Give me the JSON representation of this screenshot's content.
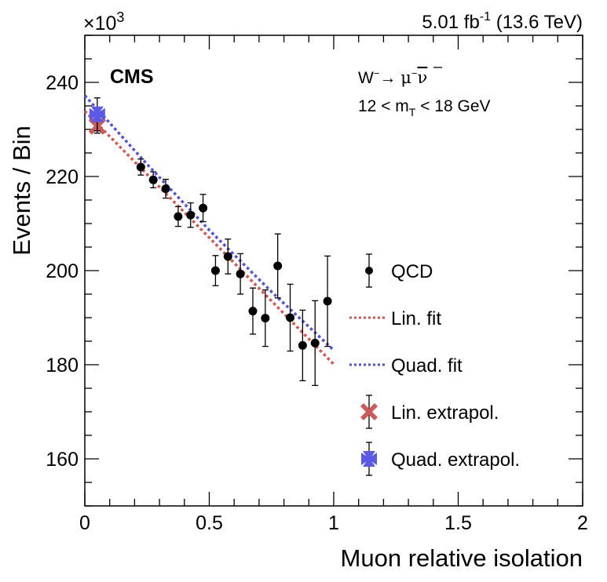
{
  "chart_data": {
    "type": "scatter",
    "title": "",
    "xlabel": "Muon relative isolation",
    "ylabel": "Events / Bin",
    "y_multiplier": "×10",
    "y_multiplier_exp": "3",
    "xlim": [
      0,
      2
    ],
    "ylim": [
      150,
      250
    ],
    "x_ticks": [
      0,
      0.5,
      1,
      1.5,
      2
    ],
    "x_tick_labels": [
      "0",
      "0.5",
      "1",
      "1.5",
      "2"
    ],
    "x_minor_step": 0.1,
    "y_ticks": [
      160,
      180,
      200,
      220,
      240
    ],
    "y_tick_labels": [
      "160",
      "180",
      "200",
      "220",
      "240"
    ],
    "y_minor_step": 5,
    "grid": false,
    "experiment_label": "CMS",
    "lumi_label": {
      "value": "5.01 fb",
      "exp": "-1",
      "energy": " (13.6 TeV)"
    },
    "annotations": {
      "process": {
        "w": "W",
        "w_charge": "−",
        "arrow": "→ ",
        "mu": "μ",
        "mu_charge": "−",
        "nu": "ν"
      },
      "mt_range": {
        "pre": "12 < m",
        "sub": "T",
        "post": " < 18 GeV"
      }
    },
    "legend_position": "right",
    "series": [
      {
        "name": "QCD",
        "kind": "points-with-errors",
        "color": "#000000",
        "x": [
          0.225,
          0.275,
          0.325,
          0.375,
          0.425,
          0.475,
          0.525,
          0.575,
          0.625,
          0.675,
          0.725,
          0.775,
          0.825,
          0.875,
          0.925,
          0.975
        ],
        "y": [
          222.0,
          219.3,
          217.4,
          211.5,
          211.8,
          213.3,
          200.0,
          203.0,
          199.3,
          191.4,
          189.9,
          201.0,
          190.0,
          184.1,
          184.6,
          193.5
        ],
        "yerr": [
          1.7,
          1.7,
          2.0,
          2.1,
          2.6,
          2.9,
          3.2,
          3.7,
          4.3,
          4.9,
          6.0,
          6.8,
          7.1,
          7.5,
          9.0,
          9.6
        ]
      },
      {
        "name": "Lin. fit",
        "kind": "dotted-line",
        "color": "#d9534f",
        "x": [
          0.0,
          1.0
        ],
        "y": [
          233.9,
          180.1
        ]
      },
      {
        "name": "Quad. fit",
        "kind": "dotted-line",
        "color": "#5050e0",
        "x": [
          0.0,
          0.25,
          0.5,
          0.75,
          1.0
        ],
        "y": [
          237.2,
          222.6,
          208.6,
          195.5,
          183.1
        ]
      },
      {
        "name": "Lin. extrapol.",
        "kind": "marker-x",
        "color": "#cc5a5a",
        "x": [
          0.05
        ],
        "y": [
          230.7
        ],
        "yerr": [
          1.5
        ]
      },
      {
        "name": "Quad. extrapol.",
        "kind": "marker-star",
        "color": "#5a5ae6",
        "x": [
          0.05
        ],
        "y": [
          233.2
        ],
        "yerr": [
          3.5
        ]
      }
    ]
  }
}
